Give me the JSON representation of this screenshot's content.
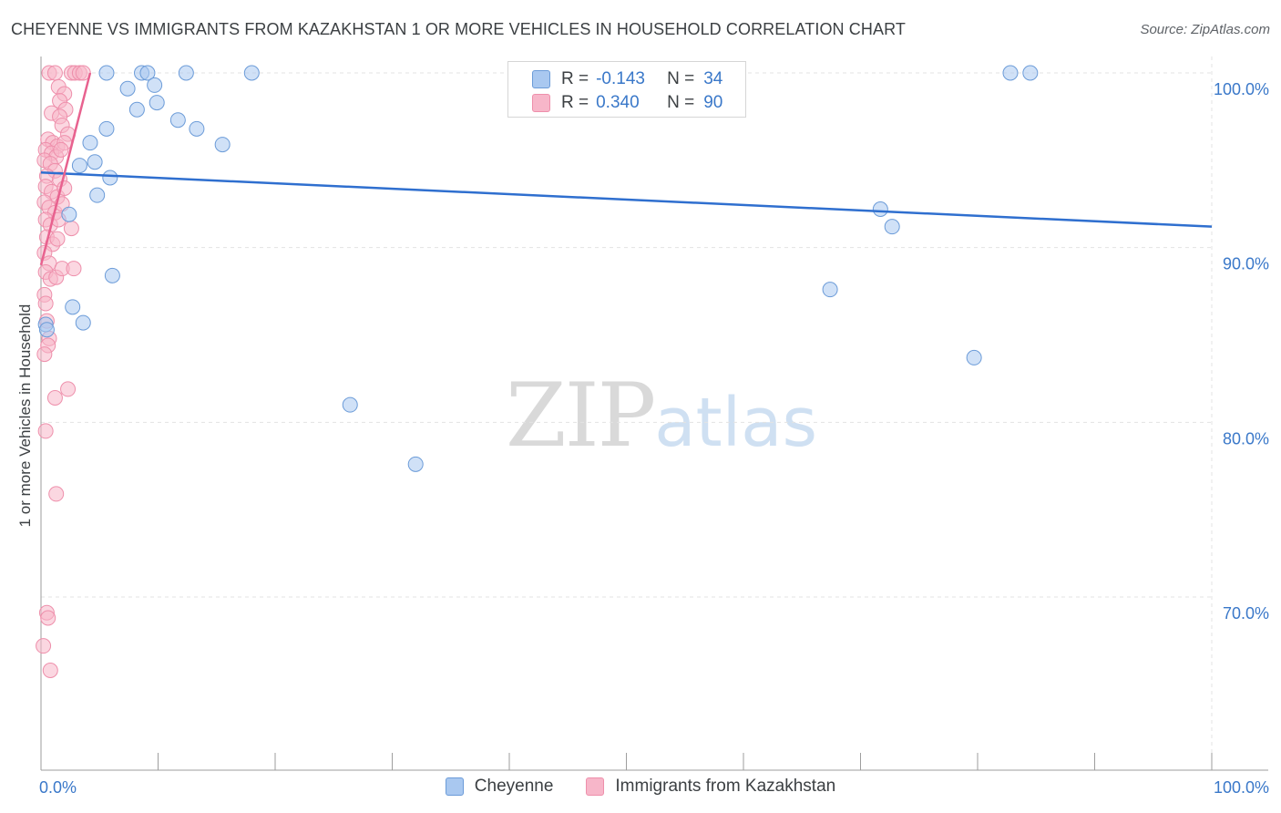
{
  "header": {
    "title": "CHEYENNE VS IMMIGRANTS FROM KAZAKHSTAN 1 OR MORE VEHICLES IN HOUSEHOLD CORRELATION CHART",
    "source": "Source: ZipAtlas.com"
  },
  "watermark": {
    "zip": "ZIP",
    "atlas": "atlas"
  },
  "legend": {
    "rows": [
      {
        "r_label": "R =",
        "r_value": "-0.143",
        "n_label": "N =",
        "n_value": "34",
        "color": "#a9c8f0"
      },
      {
        "r_label": "R =",
        "r_value": "0.340",
        "n_label": "N =",
        "n_value": "90",
        "color": "#f7b6c9"
      }
    ]
  },
  "bottom_legend": {
    "items": [
      {
        "label": "Cheyenne",
        "color": "#a9c8f0"
      },
      {
        "label": "Immigrants from Kazakhstan",
        "color": "#f7b6c9"
      }
    ]
  },
  "chart_data": {
    "type": "scatter",
    "title": "CHEYENNE VS IMMIGRANTS FROM KAZAKHSTAN 1 OR MORE VEHICLES IN HOUSEHOLD CORRELATION CHART",
    "xlabel": "",
    "ylabel": "1 or more Vehicles in Household",
    "xlim": [
      0,
      100
    ],
    "ylim": [
      60.0,
      101.0
    ],
    "x_tick_labels": [
      "0.0%",
      "100.0%"
    ],
    "y_ticks": [
      100.0,
      90.0,
      80.0,
      70.0
    ],
    "y_tick_labels": [
      "100.0%",
      "90.0%",
      "80.0%",
      "70.0%"
    ],
    "grid": true,
    "series": [
      {
        "name": "Cheyenne",
        "color": "#a9c8f0",
        "stroke": "#6b9bd8",
        "line_color": "#2f6fcf",
        "trend": {
          "x": [
            0,
            100
          ],
          "y": [
            94.3,
            91.2
          ]
        },
        "points": [
          [
            0.4,
            85.6
          ],
          [
            0.5,
            85.3
          ],
          [
            4.2,
            96.0
          ],
          [
            5.6,
            96.8
          ],
          [
            3.3,
            94.7
          ],
          [
            4.6,
            94.9
          ],
          [
            5.9,
            94.0
          ],
          [
            4.8,
            93.0
          ],
          [
            2.4,
            91.9
          ],
          [
            6.1,
            88.4
          ],
          [
            2.7,
            86.6
          ],
          [
            3.6,
            85.7
          ],
          [
            5.6,
            100.0
          ],
          [
            7.4,
            99.1
          ],
          [
            8.6,
            100.0
          ],
          [
            9.1,
            100.0
          ],
          [
            9.7,
            99.3
          ],
          [
            8.2,
            97.9
          ],
          [
            9.9,
            98.3
          ],
          [
            11.7,
            97.3
          ],
          [
            12.4,
            100.0
          ],
          [
            13.3,
            96.8
          ],
          [
            15.5,
            95.9
          ],
          [
            18.0,
            100.0
          ],
          [
            26.4,
            81.0
          ],
          [
            32.0,
            77.6
          ],
          [
            67.4,
            87.6
          ],
          [
            71.7,
            92.2
          ],
          [
            72.7,
            91.2
          ],
          [
            79.7,
            83.7
          ],
          [
            82.8,
            100.0
          ],
          [
            84.5,
            100.0
          ]
        ]
      },
      {
        "name": "Immigrants from Kazakhstan",
        "color": "#f7b6c9",
        "stroke": "#ee8fab",
        "line_color": "#e8628f",
        "trend": {
          "x": [
            0,
            4.2
          ],
          "y": [
            89.0,
            100.0
          ]
        },
        "points": [
          [
            0.7,
            100.0
          ],
          [
            1.2,
            100.0
          ],
          [
            2.6,
            100.0
          ],
          [
            2.9,
            100.0
          ],
          [
            3.3,
            100.0
          ],
          [
            3.6,
            100.0
          ],
          [
            1.5,
            99.2
          ],
          [
            2.0,
            98.8
          ],
          [
            1.6,
            98.4
          ],
          [
            2.1,
            97.9
          ],
          [
            0.9,
            97.7
          ],
          [
            1.6,
            97.5
          ],
          [
            1.8,
            97.0
          ],
          [
            2.3,
            96.5
          ],
          [
            0.6,
            96.2
          ],
          [
            1.0,
            96.0
          ],
          [
            1.4,
            95.8
          ],
          [
            2.0,
            96.0
          ],
          [
            0.4,
            95.6
          ],
          [
            0.9,
            95.4
          ],
          [
            1.3,
            95.2
          ],
          [
            1.7,
            95.6
          ],
          [
            0.3,
            95.0
          ],
          [
            0.8,
            94.8
          ],
          [
            1.2,
            94.4
          ],
          [
            0.5,
            94.1
          ],
          [
            1.6,
            93.9
          ],
          [
            0.4,
            93.5
          ],
          [
            0.9,
            93.2
          ],
          [
            1.4,
            92.9
          ],
          [
            2.0,
            93.4
          ],
          [
            0.3,
            92.6
          ],
          [
            0.7,
            92.3
          ],
          [
            1.2,
            92.0
          ],
          [
            1.8,
            92.5
          ],
          [
            0.4,
            91.6
          ],
          [
            0.8,
            91.3
          ],
          [
            1.5,
            91.6
          ],
          [
            2.6,
            91.1
          ],
          [
            0.5,
            90.6
          ],
          [
            1.0,
            90.2
          ],
          [
            1.4,
            90.5
          ],
          [
            0.3,
            89.7
          ],
          [
            0.7,
            89.1
          ],
          [
            0.4,
            88.6
          ],
          [
            0.8,
            88.2
          ],
          [
            1.3,
            88.3
          ],
          [
            1.8,
            88.8
          ],
          [
            2.8,
            88.8
          ],
          [
            0.3,
            87.3
          ],
          [
            0.4,
            86.8
          ],
          [
            0.5,
            85.8
          ],
          [
            0.7,
            84.8
          ],
          [
            0.6,
            84.4
          ],
          [
            0.3,
            83.9
          ],
          [
            1.2,
            81.4
          ],
          [
            2.3,
            81.9
          ],
          [
            0.4,
            79.5
          ],
          [
            1.3,
            75.9
          ],
          [
            0.5,
            69.1
          ],
          [
            0.6,
            68.8
          ],
          [
            0.2,
            67.2
          ],
          [
            0.8,
            65.8
          ]
        ]
      }
    ]
  }
}
